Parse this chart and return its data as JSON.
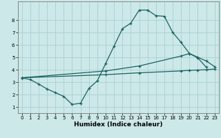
{
  "bg_color": "#cce8e8",
  "grid_color": "#aacfcf",
  "line_color": "#1a6060",
  "line_width": 0.9,
  "marker": "+",
  "marker_size": 3.5,
  "marker_lw": 0.9,
  "xlabel": "Humidex (Indice chaleur)",
  "xlabel_fontsize": 6.5,
  "xlabel_bold": true,
  "xlim": [
    -0.5,
    23.5
  ],
  "ylim": [
    0.5,
    9.5
  ],
  "yticks": [
    1,
    2,
    3,
    4,
    5,
    6,
    7,
    8
  ],
  "xticks": [
    0,
    1,
    2,
    3,
    4,
    5,
    6,
    7,
    8,
    9,
    10,
    11,
    12,
    13,
    14,
    15,
    16,
    17,
    18,
    19,
    20,
    21,
    22,
    23
  ],
  "tick_fontsize": 5.0,
  "line1_x": [
    0,
    1,
    2,
    3,
    4,
    5,
    6,
    7,
    8,
    9,
    10,
    11,
    12,
    13,
    14,
    15,
    16,
    17,
    18,
    19,
    20,
    21,
    22
  ],
  "line1_y": [
    3.35,
    3.2,
    2.85,
    2.45,
    2.15,
    1.85,
    1.2,
    1.3,
    2.5,
    3.1,
    4.5,
    5.9,
    7.3,
    7.75,
    8.8,
    8.8,
    8.35,
    8.3,
    7.0,
    6.2,
    5.3,
    4.95,
    4.2
  ],
  "line2_x": [
    0,
    10,
    14,
    19,
    20,
    21,
    22,
    23
  ],
  "line2_y": [
    3.35,
    3.9,
    4.3,
    5.1,
    5.3,
    5.0,
    4.7,
    4.25
  ],
  "line3_x": [
    0,
    10,
    14,
    19,
    20,
    21,
    22,
    23
  ],
  "line3_y": [
    3.35,
    3.6,
    3.75,
    3.9,
    3.95,
    3.97,
    4.0,
    4.05
  ]
}
